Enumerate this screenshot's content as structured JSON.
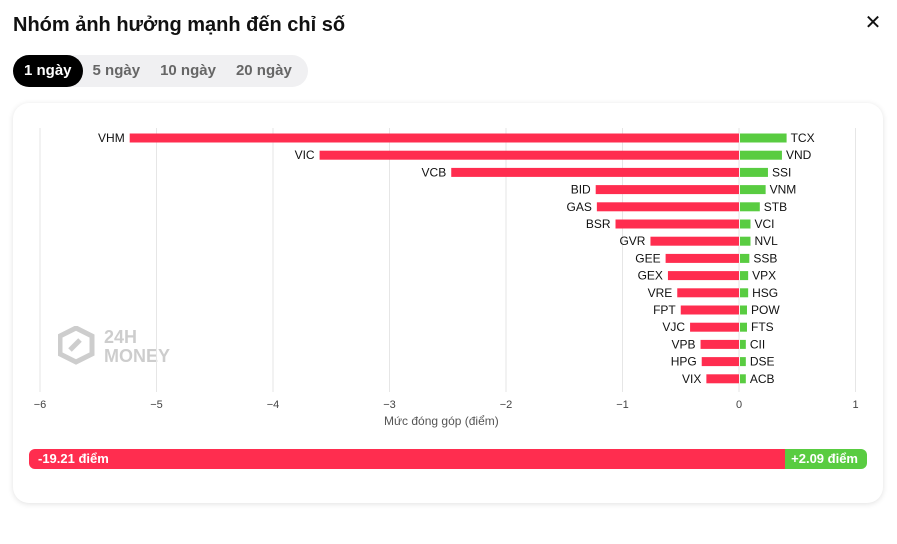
{
  "header": {
    "title": "Nhóm ảnh hưởng mạnh đến chỉ số",
    "close_icon": "close-icon"
  },
  "tabs": [
    {
      "label": "1 ngày",
      "active": true
    },
    {
      "label": "5 ngày",
      "active": false
    },
    {
      "label": "10 ngày",
      "active": false
    },
    {
      "label": "20 ngày",
      "active": false
    }
  ],
  "watermark": {
    "line1": "24H",
    "line2": "MONEY"
  },
  "colors": {
    "negative": "#ff2d4f",
    "positive": "#59cc41",
    "grid": "#e6e6e6"
  },
  "chart_data": {
    "type": "bar",
    "orientation": "horizontal",
    "xlabel": "Mức đóng góp (điểm)",
    "xlim": [
      -6,
      1
    ],
    "xticks": [
      -6,
      -5,
      -4,
      -3,
      -2,
      -1,
      0,
      1
    ],
    "xtick_labels": [
      "−6",
      "−5",
      "−4",
      "−3",
      "−2",
      "−1",
      "0",
      "1"
    ],
    "grid": true,
    "negative_series": {
      "categories": [
        "VHM",
        "VIC",
        "VCB",
        "BID",
        "GAS",
        "BSR",
        "GVR",
        "GEE",
        "GEX",
        "VRE",
        "FPT",
        "VJC",
        "VPB",
        "HPG",
        "VIX"
      ],
      "values": [
        -5.23,
        -3.6,
        -2.47,
        -1.23,
        -1.22,
        -1.06,
        -0.76,
        -0.63,
        -0.61,
        -0.53,
        -0.5,
        -0.42,
        -0.33,
        -0.32,
        -0.28
      ]
    },
    "positive_series": {
      "categories": [
        "TCX",
        "VND",
        "SSI",
        "VNM",
        "STB",
        "VCI",
        "NVL",
        "SSB",
        "VPX",
        "HSG",
        "POW",
        "FTS",
        "CII",
        "DSE",
        "ACB"
      ],
      "values": [
        0.4,
        0.36,
        0.24,
        0.22,
        0.17,
        0.09,
        0.09,
        0.08,
        0.07,
        0.07,
        0.06,
        0.06,
        0.05,
        0.05,
        0.05
      ]
    }
  },
  "summary": {
    "negative_label": "-19.21 điểm",
    "positive_label": "+2.09 điểm",
    "negative_total": -19.21,
    "positive_total": 2.09
  }
}
